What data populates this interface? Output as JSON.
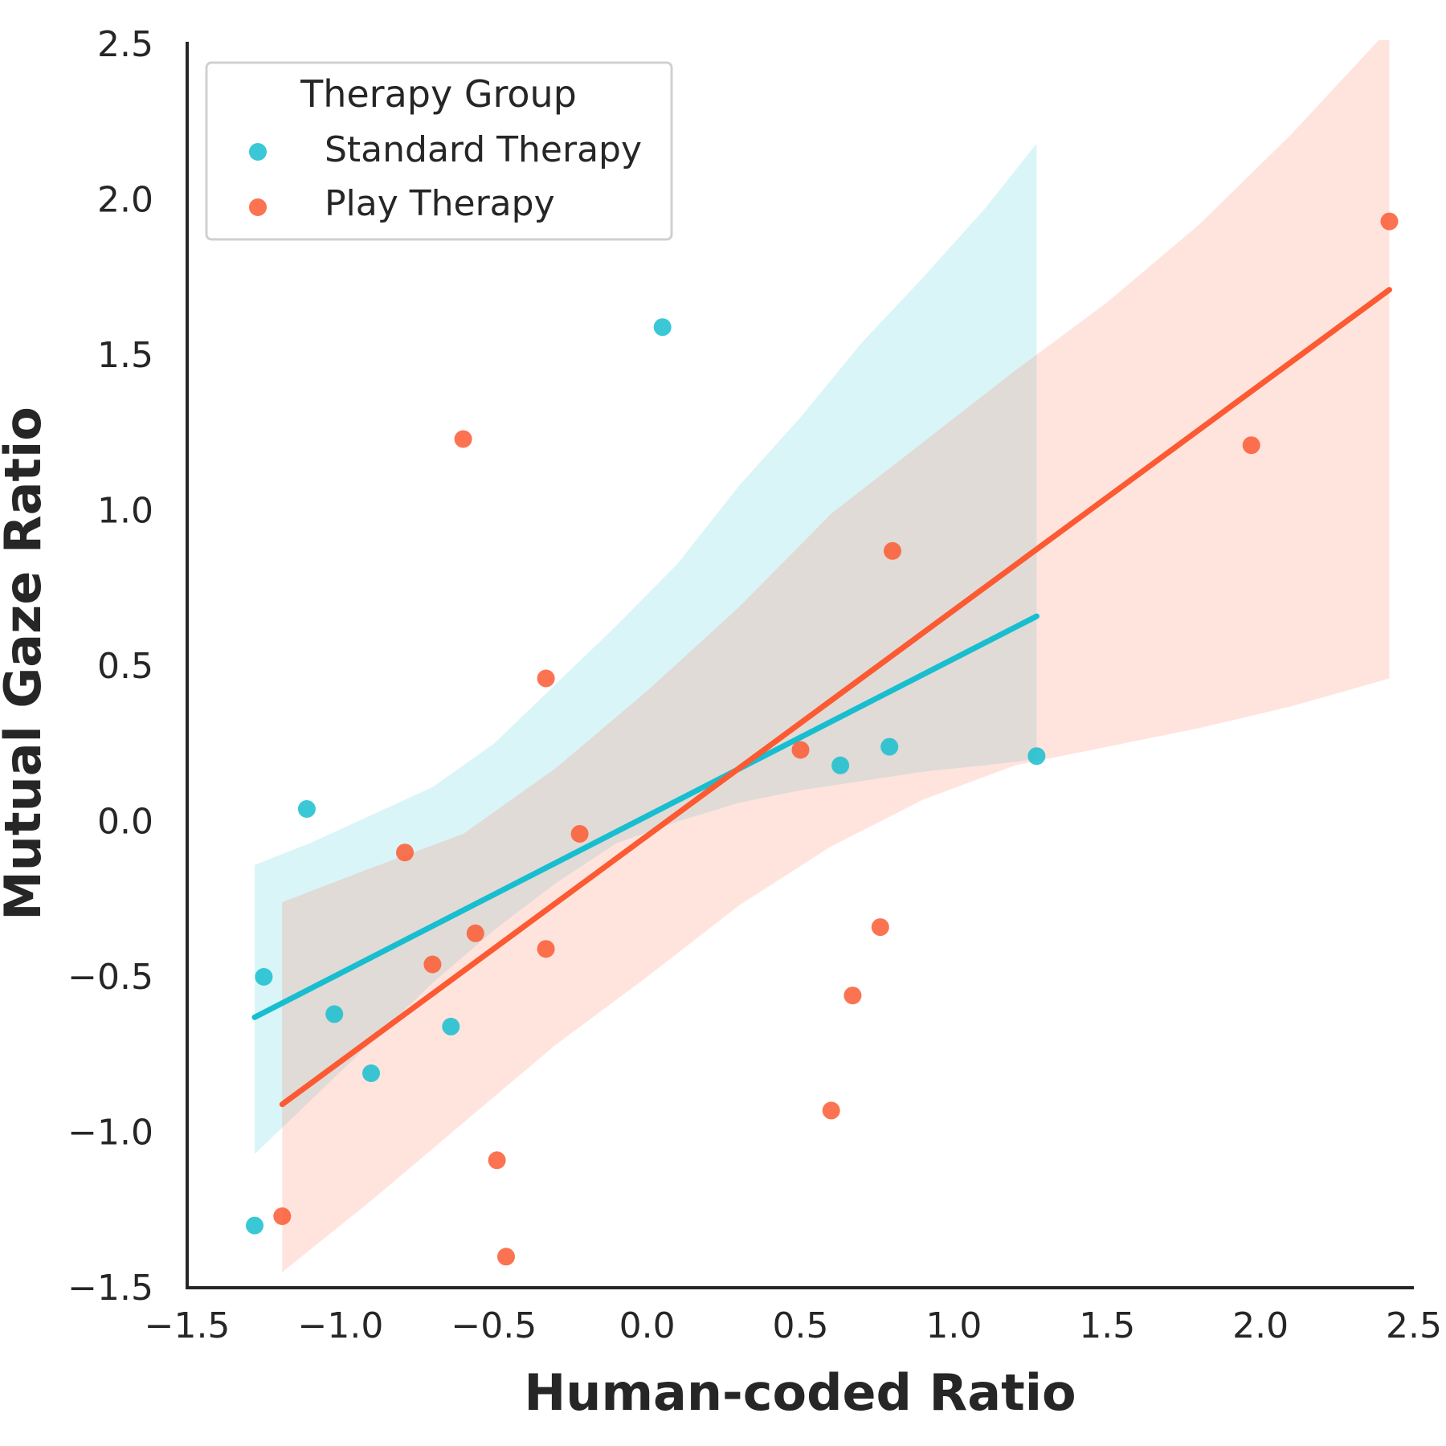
{
  "chart_data": {
    "type": "scatter",
    "title": "",
    "xlabel": "Human-coded Ratio",
    "ylabel": "Mutual Gaze Ratio",
    "xlim": [
      -1.5,
      2.5
    ],
    "ylim": [
      -1.5,
      2.5
    ],
    "x_ticks": [
      -1.5,
      -1.0,
      -0.5,
      0.0,
      0.5,
      1.0,
      1.5,
      2.0,
      2.5
    ],
    "x_tick_labels": [
      "−1.5",
      "−1.0",
      "−0.5",
      "0.0",
      "0.5",
      "1.0",
      "1.5",
      "2.0",
      "2.5"
    ],
    "y_ticks": [
      -1.5,
      -1.0,
      -0.5,
      0.0,
      0.5,
      1.0,
      1.5,
      2.0,
      2.5
    ],
    "y_tick_labels": [
      "−1.5",
      "−1.0",
      "−0.5",
      "0.0",
      "0.5",
      "1.0",
      "1.5",
      "2.0",
      "2.5"
    ],
    "grid": false,
    "legend": {
      "title": "Therapy Group",
      "position": "top-left"
    },
    "series": [
      {
        "name": "Standard Therapy",
        "color": "#17becf",
        "points": [
          [
            -1.28,
            -1.3
          ],
          [
            -1.25,
            -0.5
          ],
          [
            -1.11,
            0.04
          ],
          [
            -1.02,
            -0.62
          ],
          [
            -0.9,
            -0.81
          ],
          [
            -0.64,
            -0.66
          ],
          [
            0.05,
            1.59
          ],
          [
            0.63,
            0.18
          ],
          [
            0.79,
            0.24
          ],
          [
            1.27,
            0.21
          ]
        ],
        "fit_line": {
          "x": [
            -1.28,
            1.27
          ],
          "y": [
            -0.63,
            0.66
          ]
        },
        "ci_band": {
          "x": [
            -1.28,
            -1.1,
            -0.9,
            -0.7,
            -0.5,
            -0.3,
            -0.1,
            0.1,
            0.3,
            0.5,
            0.7,
            0.9,
            1.1,
            1.27
          ],
          "lower": [
            -1.07,
            -0.9,
            -0.71,
            -0.52,
            -0.35,
            -0.2,
            -0.07,
            0.0,
            0.06,
            0.1,
            0.13,
            0.16,
            0.18,
            0.2
          ],
          "upper": [
            -0.14,
            -0.07,
            0.02,
            0.11,
            0.25,
            0.44,
            0.63,
            0.83,
            1.08,
            1.3,
            1.54,
            1.75,
            1.97,
            2.18
          ]
        }
      },
      {
        "name": "Play Therapy",
        "color": "#fc5a32",
        "points": [
          [
            -1.19,
            -1.27
          ],
          [
            -0.79,
            -0.1
          ],
          [
            -0.7,
            -0.46
          ],
          [
            -0.6,
            1.23
          ],
          [
            -0.56,
            -0.36
          ],
          [
            -0.49,
            -1.09
          ],
          [
            -0.46,
            -1.4
          ],
          [
            -0.33,
            0.46
          ],
          [
            -0.33,
            -0.41
          ],
          [
            -0.22,
            -0.04
          ],
          [
            0.5,
            0.23
          ],
          [
            0.6,
            -0.93
          ],
          [
            0.67,
            -0.56
          ],
          [
            0.76,
            -0.34
          ],
          [
            0.8,
            0.87
          ],
          [
            1.97,
            1.21
          ],
          [
            2.42,
            1.93
          ]
        ],
        "fit_line": {
          "x": [
            -1.19,
            2.42
          ],
          "y": [
            -0.91,
            1.71
          ]
        },
        "ci_band": {
          "x": [
            -1.19,
            -0.9,
            -0.6,
            -0.3,
            0.0,
            0.3,
            0.6,
            0.9,
            1.2,
            1.5,
            1.8,
            2.1,
            2.42
          ],
          "lower": [
            -1.45,
            -1.22,
            -0.97,
            -0.72,
            -0.5,
            -0.27,
            -0.08,
            0.07,
            0.18,
            0.24,
            0.3,
            0.37,
            0.46
          ],
          "upper": [
            -0.26,
            -0.15,
            -0.04,
            0.17,
            0.42,
            0.69,
            0.99,
            1.22,
            1.45,
            1.67,
            1.92,
            2.21,
            2.55
          ]
        }
      }
    ]
  }
}
